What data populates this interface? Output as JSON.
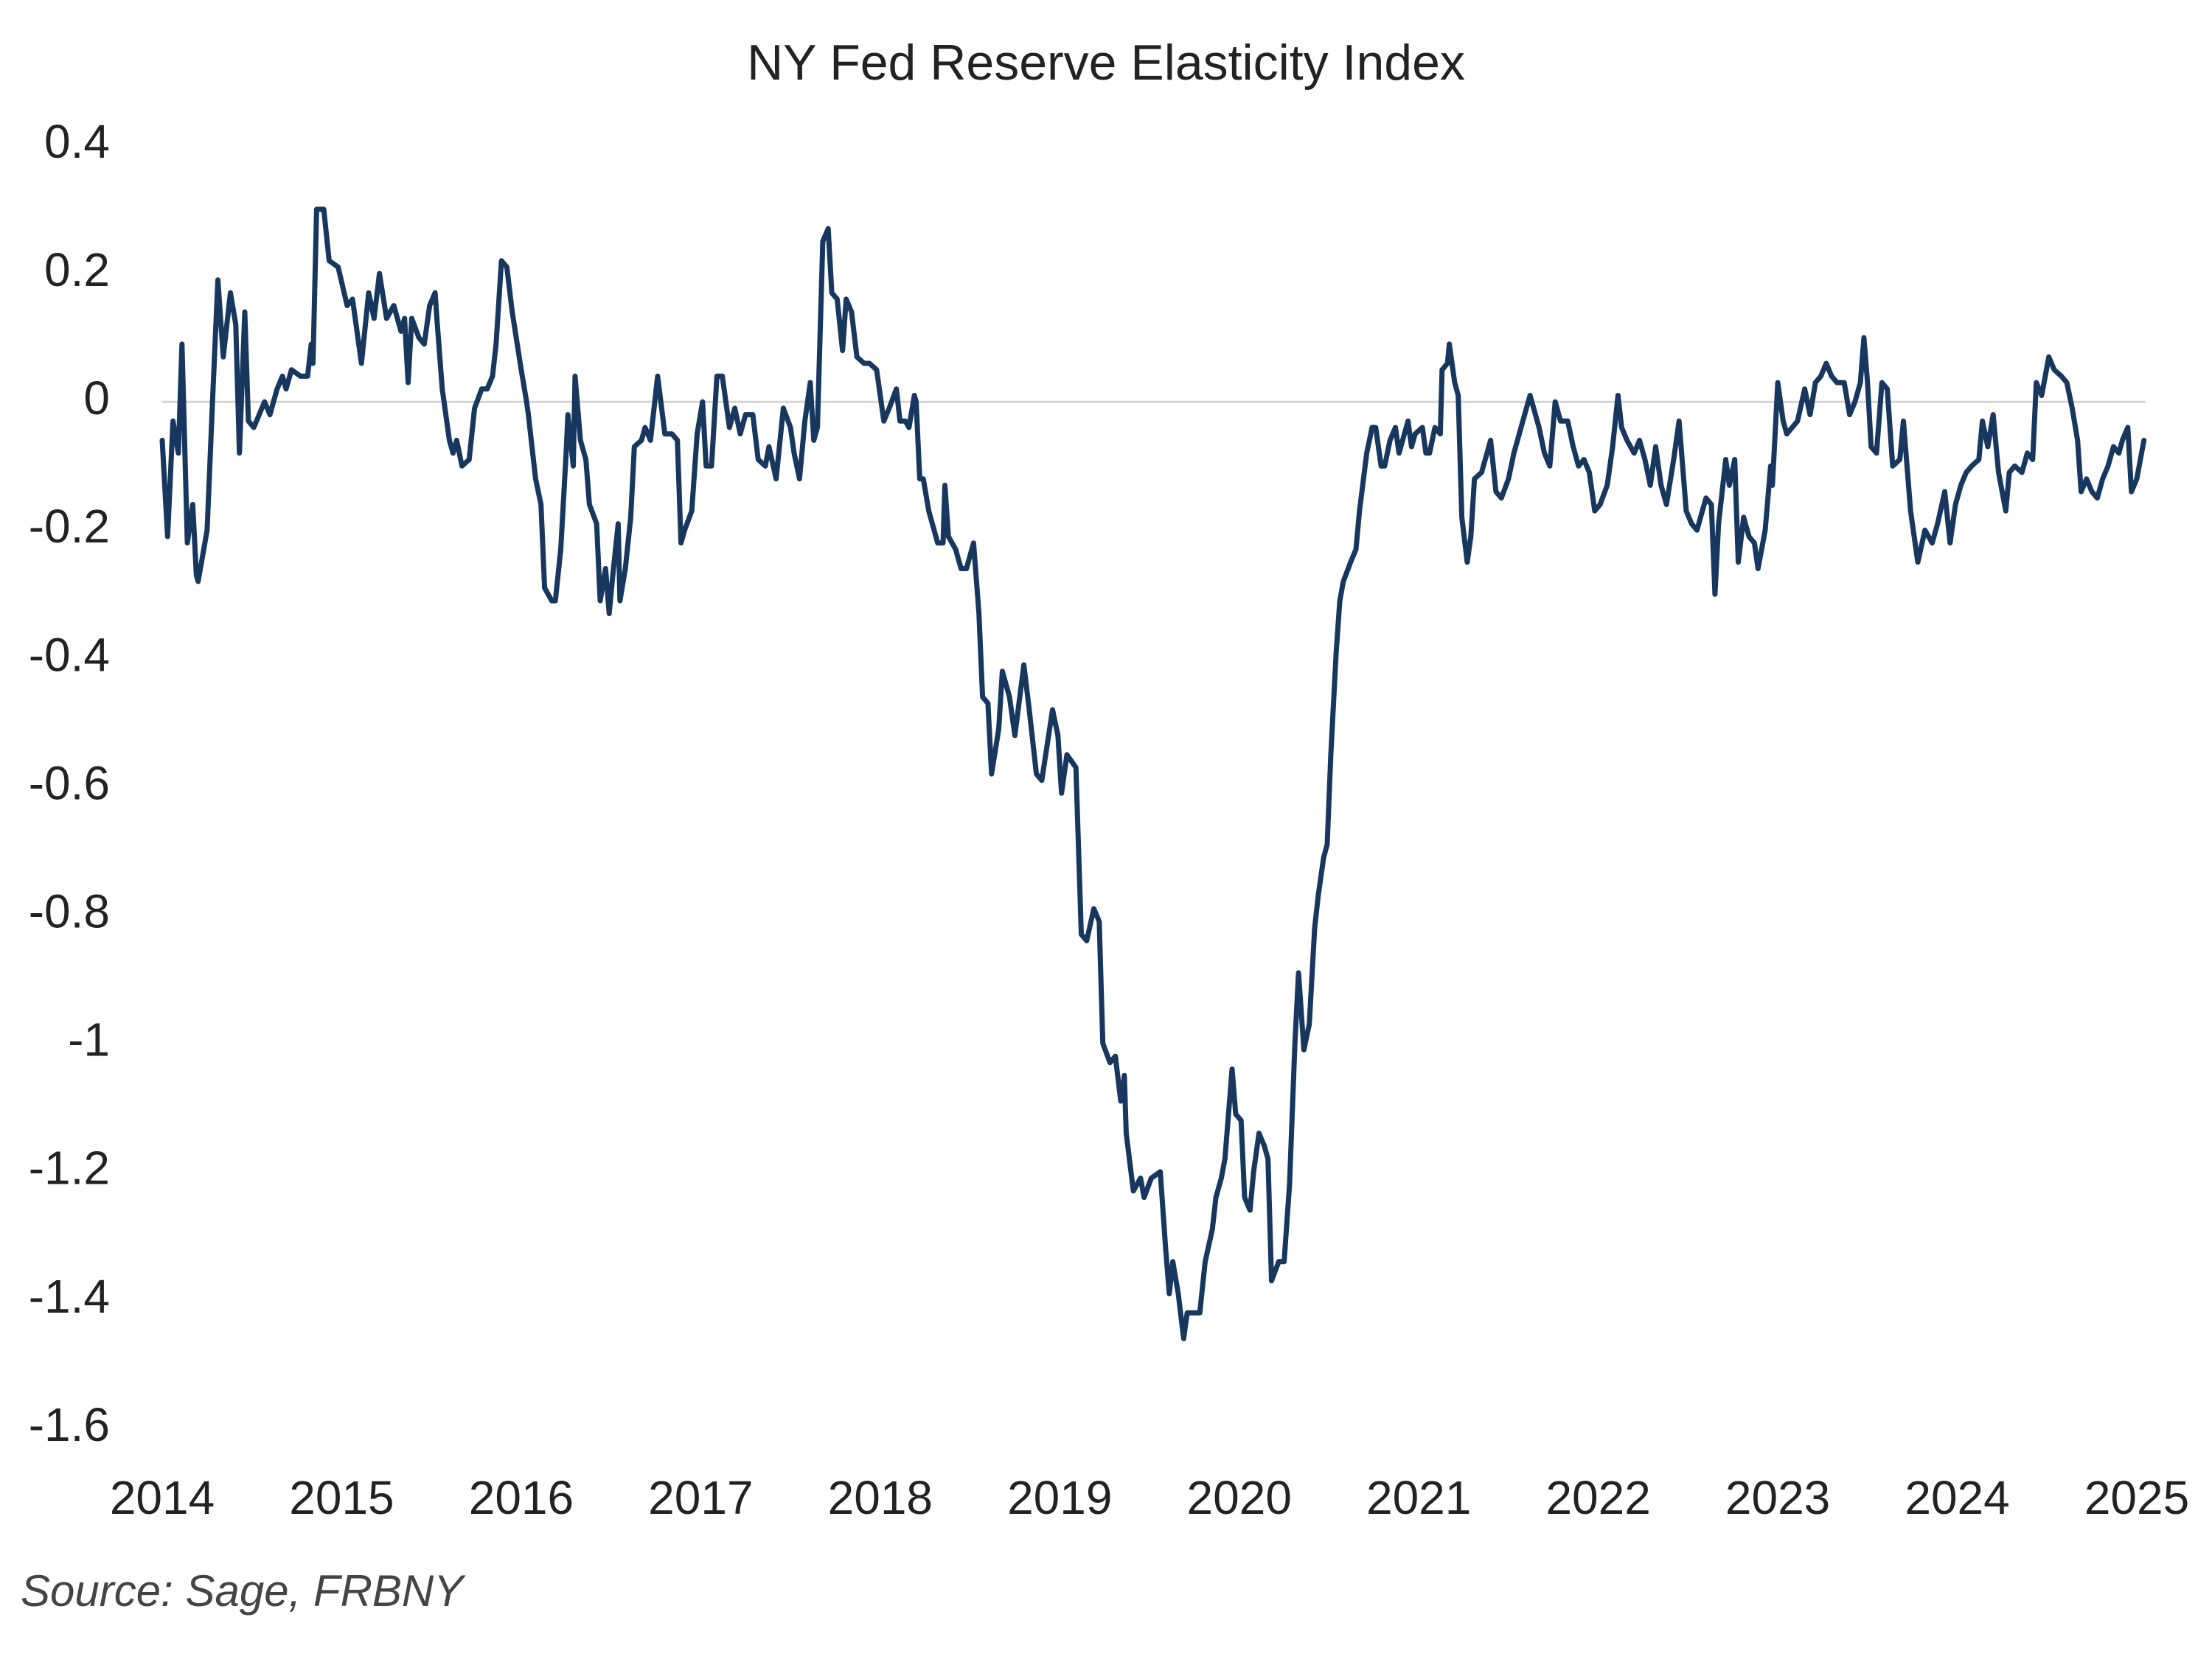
{
  "chart_data": {
    "type": "line",
    "title": "NY Fed Reserve Elasticity Index",
    "source": "Source: Sage, FRBNY",
    "color": "#17375e",
    "zero_line": true,
    "xlim": [
      2014,
      2025
    ],
    "xticks": [
      2014,
      2015,
      2016,
      2017,
      2018,
      2019,
      2020,
      2021,
      2022,
      2023,
      2024,
      2025
    ],
    "ylim": [
      -1.6,
      0.4
    ],
    "yticks": [
      0.4,
      0.2,
      0,
      -0.2,
      -0.4,
      -0.6,
      -0.8,
      -1,
      -1.2,
      -1.4,
      -1.6
    ],
    "x": [
      2014.0,
      2014.03,
      2014.06,
      2014.09,
      2014.11,
      2014.14,
      2014.17,
      2014.19,
      2014.2,
      2014.25,
      2014.28,
      2014.31,
      2014.34,
      2014.38,
      2014.41,
      2014.43,
      2014.46,
      2014.48,
      2014.51,
      2014.57,
      2014.6,
      2014.64,
      2014.67,
      2014.69,
      2014.72,
      2014.77,
      2014.81,
      2014.83,
      2014.84,
      2014.86,
      2014.9,
      2014.93,
      2014.98,
      2015.03,
      2015.06,
      2015.11,
      2015.15,
      2015.18,
      2015.21,
      2015.25,
      2015.29,
      2015.33,
      2015.35,
      2015.37,
      2015.39,
      2015.43,
      2015.46,
      2015.49,
      2015.52,
      2015.53,
      2015.56,
      2015.6,
      2015.62,
      2015.64,
      2015.67,
      2015.71,
      2015.74,
      2015.78,
      2015.81,
      2015.84,
      2015.86,
      2015.89,
      2015.92,
      2015.95,
      2016.0,
      2016.03,
      2016.04,
      2016.08,
      2016.11,
      2016.13,
      2016.17,
      2016.19,
      2016.22,
      2016.25,
      2016.26,
      2016.29,
      2016.3,
      2016.33,
      2016.36,
      2016.38,
      2016.42,
      2016.44,
      2016.47,
      2016.49,
      2016.51,
      2016.54,
      2016.55,
      2016.58,
      2016.61,
      2016.63,
      2016.67,
      2016.69,
      2016.72,
      2016.76,
      2016.8,
      2016.84,
      2016.87,
      2016.89,
      2016.91,
      2016.95,
      2016.98,
      2017.01,
      2017.03,
      2017.06,
      2017.09,
      2017.12,
      2017.16,
      2017.19,
      2017.22,
      2017.25,
      2017.29,
      2017.32,
      2017.36,
      2017.38,
      2017.42,
      2017.46,
      2017.5,
      2017.52,
      2017.55,
      2017.58,
      2017.61,
      2017.63,
      2017.65,
      2017.68,
      2017.71,
      2017.73,
      2017.76,
      2017.79,
      2017.81,
      2017.84,
      2017.87,
      2017.91,
      2017.94,
      2017.98,
      2018.02,
      2018.05,
      2018.09,
      2018.11,
      2018.14,
      2018.16,
      2018.19,
      2018.2,
      2018.22,
      2018.24,
      2018.27,
      2018.3,
      2018.32,
      2018.35,
      2018.36,
      2018.38,
      2018.42,
      2018.45,
      2018.48,
      2018.52,
      2018.55,
      2018.57,
      2018.6,
      2018.62,
      2018.66,
      2018.68,
      2018.72,
      2018.75,
      2018.8,
      2018.83,
      2018.87,
      2018.9,
      2018.96,
      2018.99,
      2019.01,
      2019.04,
      2019.09,
      2019.12,
      2019.15,
      2019.19,
      2019.22,
      2019.24,
      2019.28,
      2019.31,
      2019.34,
      2019.36,
      2019.37,
      2019.41,
      2019.45,
      2019.47,
      2019.51,
      2019.56,
      2019.59,
      2019.61,
      2019.63,
      2019.66,
      2019.69,
      2019.71,
      2019.74,
      2019.78,
      2019.81,
      2019.85,
      2019.87,
      2019.9,
      2019.92,
      2019.96,
      2019.98,
      2020.01,
      2020.03,
      2020.06,
      2020.08,
      2020.11,
      2020.14,
      2020.16,
      2020.18,
      2020.22,
      2020.25,
      2020.28,
      2020.31,
      2020.33,
      2020.36,
      2020.39,
      2020.42,
      2020.44,
      2020.47,
      2020.49,
      2020.51,
      2020.54,
      2020.56,
      2020.58,
      2020.62,
      2020.65,
      2020.67,
      2020.71,
      2020.74,
      2020.76,
      2020.79,
      2020.81,
      2020.84,
      2020.87,
      2020.89,
      2020.91,
      2020.94,
      2020.96,
      2020.98,
      2021.02,
      2021.04,
      2021.06,
      2021.09,
      2021.12,
      2021.13,
      2021.16,
      2021.17,
      2021.2,
      2021.22,
      2021.24,
      2021.27,
      2021.29,
      2021.31,
      2021.35,
      2021.37,
      2021.4,
      2021.43,
      2021.46,
      2021.5,
      2021.53,
      2021.56,
      2021.59,
      2021.62,
      2021.64,
      2021.67,
      2021.7,
      2021.73,
      2021.76,
      2021.79,
      2021.83,
      2021.86,
      2021.89,
      2021.92,
      2021.95,
      2021.98,
      2022.01,
      2022.05,
      2022.08,
      2022.11,
      2022.13,
      2022.16,
      2022.2,
      2022.23,
      2022.26,
      2022.29,
      2022.32,
      2022.35,
      2022.38,
      2022.42,
      2022.45,
      2022.49,
      2022.52,
      2022.55,
      2022.58,
      2022.6,
      2022.63,
      2022.65,
      2022.67,
      2022.71,
      2022.73,
      2022.76,
      2022.78,
      2022.81,
      2022.84,
      2022.87,
      2022.89,
      2022.93,
      2022.96,
      2022.97,
      2023.0,
      2023.03,
      2023.05,
      2023.08,
      2023.11,
      2023.15,
      2023.18,
      2023.21,
      2023.24,
      2023.27,
      2023.3,
      2023.33,
      2023.37,
      2023.4,
      2023.43,
      2023.46,
      2023.48,
      2023.5,
      2023.52,
      2023.55,
      2023.58,
      2023.61,
      2023.64,
      2023.68,
      2023.7,
      2023.74,
      2023.78,
      2023.82,
      2023.86,
      2023.89,
      2023.93,
      2023.96,
      2023.99,
      2024.02,
      2024.05,
      2024.08,
      2024.12,
      2024.14,
      2024.17,
      2024.2,
      2024.23,
      2024.27,
      2024.29,
      2024.32,
      2024.36,
      2024.39,
      2024.42,
      2024.44,
      2024.47,
      2024.51,
      2024.54,
      2024.58,
      2024.61,
      2024.64,
      2024.67,
      2024.69,
      2024.72,
      2024.75,
      2024.78,
      2024.81,
      2024.84,
      2024.87,
      2024.9,
      2024.92,
      2024.95,
      2024.97,
      2025.0,
      2025.04
    ],
    "values": [
      -0.06,
      -0.21,
      -0.03,
      -0.08,
      0.09,
      -0.22,
      -0.16,
      -0.27,
      -0.28,
      -0.2,
      0.0,
      0.19,
      0.07,
      0.17,
      0.12,
      -0.08,
      0.14,
      -0.03,
      -0.04,
      0.0,
      -0.02,
      0.02,
      0.04,
      0.02,
      0.05,
      0.04,
      0.04,
      0.09,
      0.06,
      0.3,
      0.3,
      0.22,
      0.21,
      0.15,
      0.16,
      0.06,
      0.17,
      0.13,
      0.2,
      0.13,
      0.15,
      0.11,
      0.13,
      0.03,
      0.13,
      0.1,
      0.09,
      0.15,
      0.17,
      0.13,
      0.02,
      -0.06,
      -0.08,
      -0.06,
      -0.1,
      -0.09,
      -0.01,
      0.02,
      0.02,
      0.04,
      0.09,
      0.22,
      0.21,
      0.14,
      0.05,
      0.0,
      -0.02,
      -0.12,
      -0.16,
      -0.29,
      -0.31,
      -0.31,
      -0.23,
      -0.08,
      -0.02,
      -0.1,
      0.04,
      -0.06,
      -0.09,
      -0.16,
      -0.19,
      -0.31,
      -0.26,
      -0.33,
      -0.27,
      -0.19,
      -0.31,
      -0.26,
      -0.18,
      -0.07,
      -0.06,
      -0.04,
      -0.06,
      0.04,
      -0.05,
      -0.05,
      -0.06,
      -0.22,
      -0.2,
      -0.17,
      -0.05,
      0.0,
      -0.1,
      -0.1,
      0.04,
      0.04,
      -0.04,
      -0.01,
      -0.05,
      -0.02,
      -0.02,
      -0.09,
      -0.1,
      -0.07,
      -0.12,
      -0.01,
      -0.04,
      -0.08,
      -0.12,
      -0.03,
      0.03,
      -0.06,
      -0.04,
      0.25,
      0.27,
      0.17,
      0.16,
      0.08,
      0.16,
      0.14,
      0.07,
      0.06,
      0.06,
      0.05,
      -0.03,
      -0.01,
      0.02,
      -0.03,
      -0.03,
      -0.04,
      0.01,
      0.0,
      -0.12,
      -0.12,
      -0.17,
      -0.2,
      -0.22,
      -0.22,
      -0.13,
      -0.21,
      -0.23,
      -0.26,
      -0.26,
      -0.22,
      -0.33,
      -0.46,
      -0.47,
      -0.58,
      -0.51,
      -0.42,
      -0.46,
      -0.52,
      -0.41,
      -0.48,
      -0.58,
      -0.59,
      -0.48,
      -0.52,
      -0.61,
      -0.55,
      -0.57,
      -0.83,
      -0.84,
      -0.79,
      -0.81,
      -1.0,
      -1.03,
      -1.02,
      -1.09,
      -1.05,
      -1.14,
      -1.23,
      -1.21,
      -1.24,
      -1.21,
      -1.2,
      -1.32,
      -1.39,
      -1.34,
      -1.39,
      -1.46,
      -1.42,
      -1.42,
      -1.42,
      -1.34,
      -1.29,
      -1.24,
      -1.21,
      -1.18,
      -1.04,
      -1.11,
      -1.12,
      -1.24,
      -1.26,
      -1.2,
      -1.14,
      -1.16,
      -1.18,
      -1.37,
      -1.34,
      -1.34,
      -1.22,
      -1.0,
      -0.89,
      -1.01,
      -0.97,
      -0.82,
      -0.77,
      -0.71,
      -0.69,
      -0.55,
      -0.39,
      -0.31,
      -0.28,
      -0.25,
      -0.23,
      -0.17,
      -0.08,
      -0.04,
      -0.04,
      -0.1,
      -0.1,
      -0.06,
      -0.04,
      -0.08,
      -0.06,
      -0.03,
      -0.07,
      -0.05,
      -0.04,
      -0.08,
      -0.08,
      -0.04,
      -0.05,
      0.05,
      0.06,
      0.09,
      0.03,
      0.01,
      -0.18,
      -0.25,
      -0.21,
      -0.12,
      -0.11,
      -0.09,
      -0.06,
      -0.14,
      -0.15,
      -0.12,
      -0.08,
      -0.05,
      -0.02,
      0.01,
      -0.01,
      -0.04,
      -0.08,
      -0.1,
      0.0,
      -0.03,
      -0.03,
      -0.07,
      -0.1,
      -0.09,
      -0.11,
      -0.17,
      -0.16,
      -0.13,
      -0.07,
      0.01,
      -0.04,
      -0.06,
      -0.08,
      -0.06,
      -0.09,
      -0.13,
      -0.07,
      -0.13,
      -0.16,
      -0.09,
      -0.03,
      -0.17,
      -0.19,
      -0.2,
      -0.17,
      -0.15,
      -0.16,
      -0.3,
      -0.19,
      -0.09,
      -0.13,
      -0.09,
      -0.25,
      -0.18,
      -0.21,
      -0.22,
      -0.26,
      -0.2,
      -0.1,
      -0.13,
      0.03,
      -0.03,
      -0.05,
      -0.04,
      -0.03,
      0.02,
      -0.02,
      0.03,
      0.04,
      0.06,
      0.04,
      0.03,
      0.03,
      -0.02,
      0.0,
      0.03,
      0.1,
      0.03,
      -0.07,
      -0.08,
      0.03,
      0.02,
      -0.1,
      -0.09,
      -0.03,
      -0.17,
      -0.25,
      -0.2,
      -0.22,
      -0.19,
      -0.14,
      -0.22,
      -0.16,
      -0.13,
      -0.11,
      -0.1,
      -0.09,
      -0.03,
      -0.07,
      -0.02,
      -0.11,
      -0.17,
      -0.11,
      -0.1,
      -0.11,
      -0.08,
      -0.09,
      0.03,
      0.01,
      0.07,
      0.05,
      0.04,
      0.03,
      -0.01,
      -0.06,
      -0.14,
      -0.12,
      -0.14,
      -0.15,
      -0.12,
      -0.1,
      -0.07,
      -0.08,
      -0.06,
      -0.04,
      -0.14,
      -0.12,
      -0.06
    ]
  }
}
